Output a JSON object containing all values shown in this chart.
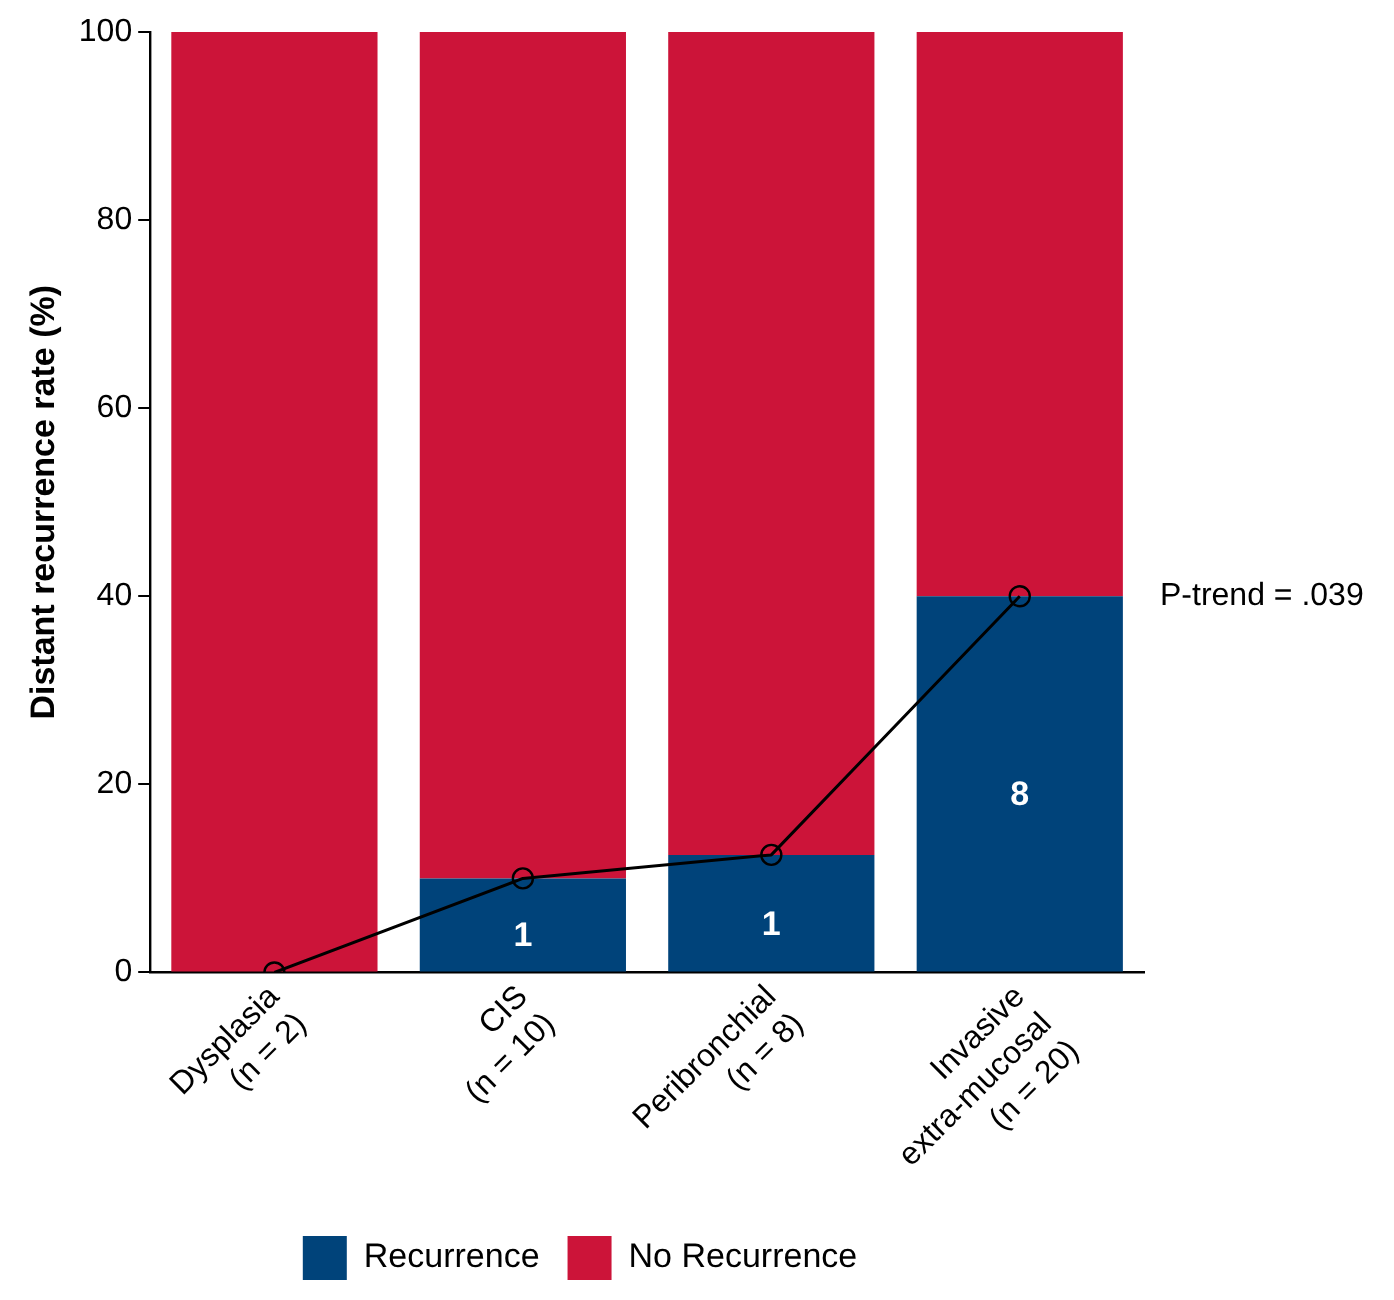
{
  "chart_data": {
    "type": "bar",
    "stacked": true,
    "ylabel": "Distant recurrence rate (%)",
    "categories": [
      "Dysplasia\n(n = 2)",
      "CIS\n(n = 10)",
      "Peribronchial\n(n = 8)",
      "Invasive\nextra-mucosal\n(n = 20)"
    ],
    "series": [
      {
        "name": "Recurrence",
        "color": "#00437a",
        "values": [
          0,
          10,
          12.5,
          40
        ]
      },
      {
        "name": "No Recurrence",
        "color": "#cc1439",
        "values": [
          100,
          90,
          87.5,
          60
        ]
      },
      {
        "type": "line",
        "color": "#000000",
        "marker": "circle",
        "values": [
          0,
          10,
          12.5,
          40
        ]
      }
    ],
    "ylim": [
      0,
      100
    ],
    "yticks": [
      0,
      20,
      40,
      60,
      80,
      100
    ],
    "grid": false,
    "legend": "bottom",
    "annotations": [
      "P-trend = .039",
      "1",
      "1",
      "8"
    ]
  }
}
